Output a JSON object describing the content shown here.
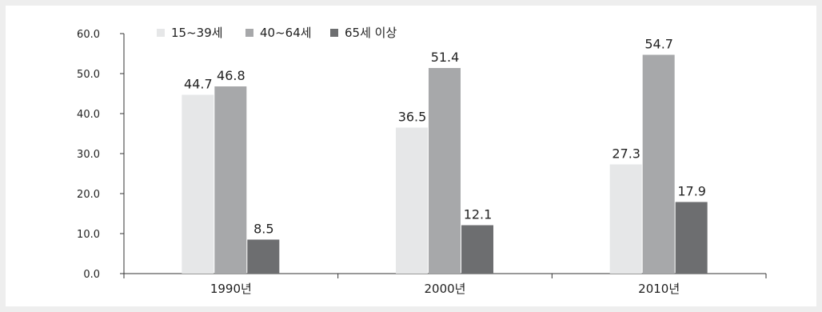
{
  "chart_data": {
    "type": "bar",
    "title": "",
    "xlabel": "",
    "ylabel": "",
    "categories": [
      "1990년",
      "2000년",
      "2010년"
    ],
    "series": [
      {
        "name": "15~39세",
        "values": [
          44.7,
          36.5,
          27.3
        ],
        "labels": [
          "44.7",
          "36.5",
          "27.3"
        ],
        "color": "#e6e7e8"
      },
      {
        "name": "40~64세",
        "values": [
          46.8,
          51.4,
          54.7
        ],
        "labels": [
          "46.8",
          "51.4",
          "54.7"
        ],
        "color": "#a7a8aa"
      },
      {
        "name": "65세 이상",
        "values": [
          8.5,
          12.1,
          17.9
        ],
        "labels": [
          "8.5",
          "12.1",
          "17.9"
        ],
        "color": "#6d6e70"
      }
    ],
    "ylim": [
      0,
      60
    ],
    "yticks": [
      0,
      10,
      20,
      30,
      40,
      50,
      60
    ],
    "ytick_labels": [
      "0.0",
      "10.0",
      "20.0",
      "30.0",
      "40.0",
      "50.0",
      "60.0"
    ],
    "grid": false,
    "legend_position": "top-left"
  }
}
